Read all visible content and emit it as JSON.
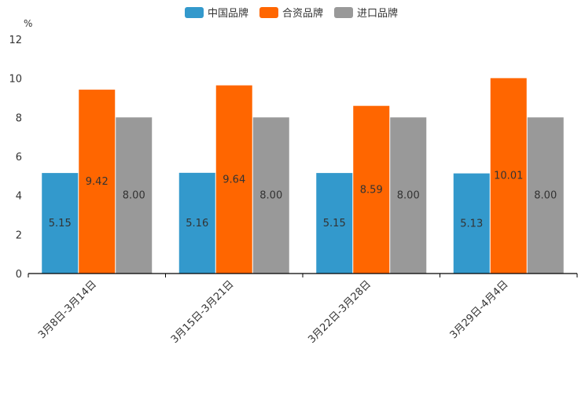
{
  "chart_data": {
    "type": "bar",
    "title": "",
    "xlabel": "",
    "ylabel": "%",
    "ylim": [
      0,
      12
    ],
    "yticks": [
      0,
      2,
      4,
      6,
      8,
      10,
      12
    ],
    "grid": false,
    "legend_position": "top-center",
    "categories": [
      "3月8日-3月14日",
      "3月15日-3月21日",
      "3月22日-3月28日",
      "3月29日-4月4日"
    ],
    "series": [
      {
        "name": "中国品牌",
        "color": "#3399cc",
        "values": [
          5.15,
          5.16,
          5.15,
          5.13
        ]
      },
      {
        "name": "合资品牌",
        "color": "#ff6600",
        "values": [
          9.42,
          9.64,
          8.59,
          10.01
        ]
      },
      {
        "name": "进口品牌",
        "color": "#999999",
        "values": [
          8.0,
          8.0,
          8.0,
          8.0
        ]
      }
    ]
  }
}
